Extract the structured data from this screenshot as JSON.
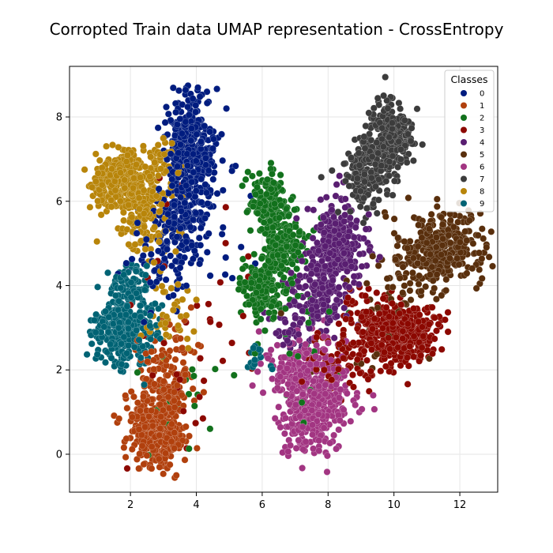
{
  "chart_data": {
    "type": "scatter",
    "title": "Corropted Train data UMAP representation - CrossEntropy",
    "xlabel": "",
    "ylabel": "",
    "xlim": [
      0.15,
      13.15
    ],
    "ylim": [
      -0.9,
      9.2
    ],
    "x_ticks": [
      2,
      4,
      6,
      8,
      10,
      12
    ],
    "y_ticks": [
      0,
      2,
      4,
      6,
      8
    ],
    "grid": true,
    "legend": {
      "title": "Classes",
      "placement": "top-right",
      "entries": [
        "0",
        "1",
        "2",
        "3",
        "4",
        "5",
        "6",
        "7",
        "8",
        "9"
      ]
    },
    "series": [
      {
        "label": "0",
        "color": "#001c7f",
        "clusters": [
          {
            "cx": 3.8,
            "cy": 7.3,
            "sx": 0.38,
            "sy": 0.65,
            "n": 380
          },
          {
            "cx": 3.6,
            "cy": 5.6,
            "sx": 0.35,
            "sy": 0.45,
            "n": 150
          },
          {
            "cx": 3.0,
            "cy": 4.6,
            "sx": 0.55,
            "sy": 0.55,
            "n": 70
          },
          {
            "cx": 4.8,
            "cy": 5.5,
            "sx": 0.6,
            "sy": 1.0,
            "n": 25
          }
        ]
      },
      {
        "label": "1",
        "color": "#b1400d",
        "clusters": [
          {
            "cx": 2.8,
            "cy": 0.5,
            "sx": 0.42,
            "sy": 0.42,
            "n": 340
          },
          {
            "cx": 3.0,
            "cy": 1.5,
            "sx": 0.4,
            "sy": 0.4,
            "n": 120
          },
          {
            "cx": 3.3,
            "cy": 2.3,
            "sx": 0.5,
            "sy": 0.35,
            "n": 40
          }
        ]
      },
      {
        "label": "2",
        "color": "#12711c",
        "clusters": [
          {
            "cx": 6.2,
            "cy": 6.0,
            "sx": 0.3,
            "sy": 0.35,
            "n": 160
          },
          {
            "cx": 6.6,
            "cy": 5.0,
            "sx": 0.35,
            "sy": 0.35,
            "n": 150
          },
          {
            "cx": 6.0,
            "cy": 3.9,
            "sx": 0.35,
            "sy": 0.3,
            "n": 150
          },
          {
            "cx": 7.0,
            "cy": 3.2,
            "sx": 0.8,
            "sy": 1.0,
            "n": 40
          },
          {
            "cx": 3.5,
            "cy": 1.5,
            "sx": 0.6,
            "sy": 1.2,
            "n": 20
          }
        ]
      },
      {
        "label": "3",
        "color": "#8c0800",
        "clusters": [
          {
            "cx": 10.4,
            "cy": 2.9,
            "sx": 0.45,
            "sy": 0.35,
            "n": 300
          },
          {
            "cx": 9.3,
            "cy": 3.1,
            "sx": 0.45,
            "sy": 0.4,
            "n": 110
          },
          {
            "cx": 8.5,
            "cy": 2.2,
            "sx": 0.6,
            "sy": 0.4,
            "n": 70
          },
          {
            "cx": 4.0,
            "cy": 3.0,
            "sx": 1.0,
            "sy": 1.4,
            "n": 40
          }
        ]
      },
      {
        "label": "4",
        "color": "#591e71",
        "clusters": [
          {
            "cx": 8.3,
            "cy": 5.1,
            "sx": 0.42,
            "sy": 0.45,
            "n": 260
          },
          {
            "cx": 7.8,
            "cy": 3.9,
            "sx": 0.42,
            "sy": 0.45,
            "n": 180
          },
          {
            "cx": 7.0,
            "cy": 3.1,
            "sx": 0.4,
            "sy": 0.4,
            "n": 60
          }
        ]
      },
      {
        "label": "5",
        "color": "#592f0d",
        "clusters": [
          {
            "cx": 11.4,
            "cy": 4.9,
            "sx": 0.6,
            "sy": 0.42,
            "n": 330
          },
          {
            "cx": 10.5,
            "cy": 4.2,
            "sx": 0.5,
            "sy": 0.5,
            "n": 60
          },
          {
            "cx": 9.0,
            "cy": 2.8,
            "sx": 0.8,
            "sy": 0.6,
            "n": 20
          }
        ]
      },
      {
        "label": "6",
        "color": "#a23582",
        "clusters": [
          {
            "cx": 7.5,
            "cy": 1.0,
            "sx": 0.48,
            "sy": 0.45,
            "n": 290
          },
          {
            "cx": 7.0,
            "cy": 2.0,
            "sx": 0.5,
            "sy": 0.42,
            "n": 150
          },
          {
            "cx": 8.0,
            "cy": 1.7,
            "sx": 0.5,
            "sy": 0.5,
            "n": 60
          }
        ]
      },
      {
        "label": "7",
        "color": "#3c3c3c",
        "clusters": [
          {
            "cx": 9.9,
            "cy": 7.6,
            "sx": 0.32,
            "sy": 0.4,
            "n": 250
          },
          {
            "cx": 9.4,
            "cy": 6.9,
            "sx": 0.38,
            "sy": 0.35,
            "n": 130
          },
          {
            "cx": 9.0,
            "cy": 6.3,
            "sx": 0.4,
            "sy": 0.35,
            "n": 70
          }
        ]
      },
      {
        "label": "8",
        "color": "#b8850a",
        "clusters": [
          {
            "cx": 1.7,
            "cy": 6.5,
            "sx": 0.45,
            "sy": 0.35,
            "n": 300
          },
          {
            "cx": 2.4,
            "cy": 5.8,
            "sx": 0.4,
            "sy": 0.5,
            "n": 160
          },
          {
            "cx": 3.0,
            "cy": 7.0,
            "sx": 0.3,
            "sy": 0.3,
            "n": 40
          },
          {
            "cx": 3.2,
            "cy": 3.2,
            "sx": 0.4,
            "sy": 0.5,
            "n": 40
          }
        ]
      },
      {
        "label": "9",
        "color": "#006374",
        "clusters": [
          {
            "cx": 1.8,
            "cy": 3.0,
            "sx": 0.45,
            "sy": 0.45,
            "n": 330
          },
          {
            "cx": 2.0,
            "cy": 4.1,
            "sx": 0.25,
            "sy": 0.25,
            "n": 60
          },
          {
            "cx": 5.8,
            "cy": 2.3,
            "sx": 0.2,
            "sy": 0.15,
            "n": 15
          }
        ]
      }
    ]
  }
}
